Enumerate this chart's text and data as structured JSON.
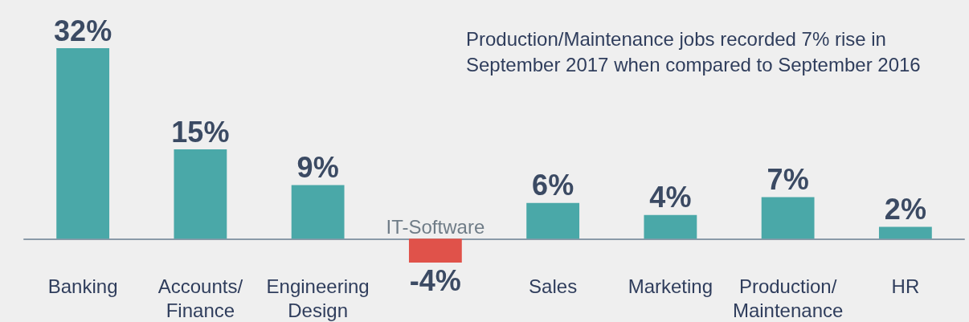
{
  "chart_data": {
    "type": "bar",
    "categories": [
      "Banking",
      "Accounts/\nFinance",
      "Engineering\nDesign",
      "IT-Software",
      "Sales",
      "Marketing",
      "Production/\nMaintenance",
      "HR"
    ],
    "values": [
      32,
      15,
      9,
      -4,
      6,
      4,
      7,
      2
    ],
    "colors": [
      "#4aa8a8",
      "#4aa8a8",
      "#4aa8a8",
      "#e0524a",
      "#4aa8a8",
      "#4aa8a8",
      "#4aa8a8",
      "#4aa8a8"
    ],
    "value_labels": [
      "32%",
      "15%",
      "9%",
      "-4%",
      "6%",
      "4%",
      "7%",
      "2%"
    ],
    "annotations": [
      "Production/Maintenance jobs recorded 7% rise in September 2017 when compared to September 2016"
    ]
  }
}
